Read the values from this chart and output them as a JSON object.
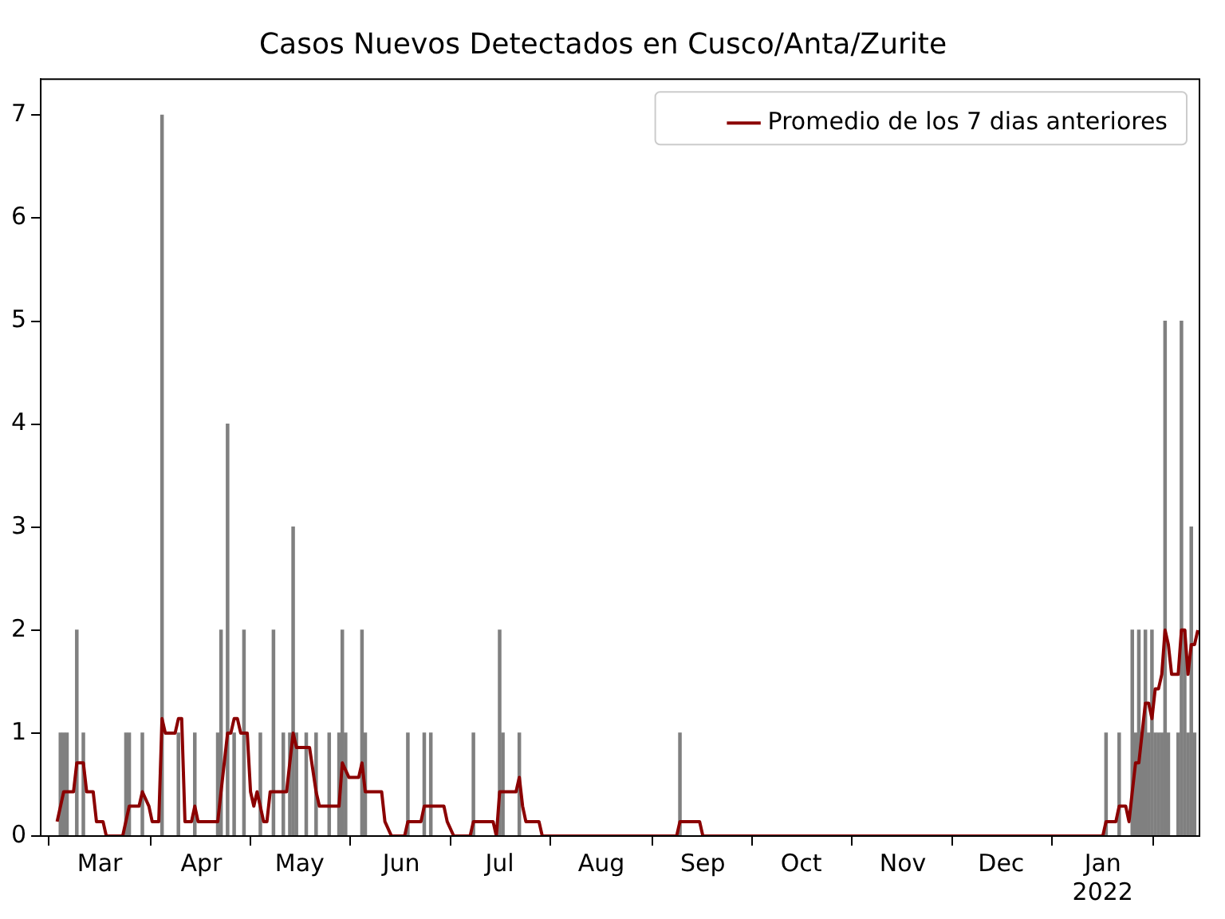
{
  "chart_data": {
    "type": "bar",
    "title": "Casos Nuevos Detectados en Cusco/Anta/Zurite",
    "xlim": [
      "2021-02-11",
      "2022-01-30"
    ],
    "xticks": [
      {
        "value": "2021-03-01",
        "label": "Mar"
      },
      {
        "value": "2021-04-01",
        "label": "Apr"
      },
      {
        "value": "2021-05-01",
        "label": "May"
      },
      {
        "value": "2021-06-01",
        "label": "Jun"
      },
      {
        "value": "2021-07-01",
        "label": "Jul"
      },
      {
        "value": "2021-08-01",
        "label": "Aug"
      },
      {
        "value": "2021-09-01",
        "label": "Sep"
      },
      {
        "value": "2021-10-01",
        "label": "Oct"
      },
      {
        "value": "2021-11-01",
        "label": "Nov"
      },
      {
        "value": "2021-12-01",
        "label": "Dec"
      },
      {
        "value": "2022-01-01",
        "label": "Jan\n2022"
      }
    ],
    "ylim": [
      0,
      7.35
    ],
    "yticks": [
      0,
      1,
      2,
      3,
      4,
      5,
      6,
      7
    ],
    "grid": false,
    "legend": "top right",
    "series": [
      {
        "color": "#808080",
        "x": [
          "2021-02-17",
          "2021-02-18",
          "2021-02-19",
          "2021-02-22",
          "2021-02-24",
          "2021-03-09",
          "2021-03-10",
          "2021-03-14",
          "2021-03-20",
          "2021-03-25",
          "2021-03-30",
          "2021-04-06",
          "2021-04-07",
          "2021-04-09",
          "2021-04-11",
          "2021-04-14",
          "2021-04-19",
          "2021-04-23",
          "2021-04-26",
          "2021-04-28",
          "2021-04-29",
          "2021-04-30",
          "2021-05-03",
          "2021-05-06",
          "2021-05-10",
          "2021-05-13",
          "2021-05-14",
          "2021-05-15",
          "2021-05-20",
          "2021-05-21",
          "2021-06-03",
          "2021-06-08",
          "2021-06-10",
          "2021-06-23",
          "2021-07-01",
          "2021-07-02",
          "2021-07-07",
          "2021-08-25",
          "2022-01-02",
          "2022-01-06",
          "2022-01-10",
          "2022-01-11",
          "2022-01-12",
          "2022-01-13",
          "2022-01-14",
          "2022-01-15",
          "2022-01-16",
          "2022-01-17",
          "2022-01-18",
          "2022-01-19",
          "2022-01-20",
          "2022-01-21",
          "2022-01-24",
          "2022-01-25",
          "2022-01-26",
          "2022-01-27",
          "2022-01-28",
          "2022-01-29"
        ],
        "values": [
          1,
          1,
          1,
          2,
          1,
          1,
          1,
          1,
          7,
          1,
          1,
          1,
          2,
          4,
          1,
          2,
          1,
          2,
          1,
          1,
          3,
          1,
          1,
          1,
          1,
          1,
          2,
          1,
          2,
          1,
          1,
          1,
          1,
          1,
          2,
          1,
          1,
          1,
          1,
          1,
          2,
          1,
          2,
          1,
          2,
          1,
          2,
          1,
          1,
          1,
          5,
          1,
          1,
          5,
          2,
          1,
          3,
          1
        ]
      },
      {
        "type": "line",
        "name": "Promedio de los 7 dias anteriores",
        "color": "#8b0000",
        "marker": "none",
        "line_style": "solid",
        "x": [
          "2021-02-16",
          "2021-02-18",
          "2021-02-21",
          "2021-02-22",
          "2021-02-24",
          "2021-02-25",
          "2021-02-27",
          "2021-02-28",
          "2021-03-02",
          "2021-03-03",
          "2021-03-08",
          "2021-03-10",
          "2021-03-13",
          "2021-03-14",
          "2021-03-16",
          "2021-03-17",
          "2021-03-19",
          "2021-03-20",
          "2021-03-21",
          "2021-03-24",
          "2021-03-25",
          "2021-03-26",
          "2021-03-27",
          "2021-03-29",
          "2021-03-30",
          "2021-03-31",
          "2021-04-06",
          "2021-04-07",
          "2021-04-09",
          "2021-04-10",
          "2021-04-11",
          "2021-04-12",
          "2021-04-13",
          "2021-04-15",
          "2021-04-16",
          "2021-04-17",
          "2021-04-18",
          "2021-04-20",
          "2021-04-21",
          "2021-04-22",
          "2021-04-27",
          "2021-04-29",
          "2021-04-30",
          "2021-05-04",
          "2021-05-06",
          "2021-05-07",
          "2021-05-13",
          "2021-05-14",
          "2021-05-16",
          "2021-05-19",
          "2021-05-20",
          "2021-05-21",
          "2021-05-26",
          "2021-05-27",
          "2021-05-29",
          "2021-06-02",
          "2021-06-03",
          "2021-06-07",
          "2021-06-08",
          "2021-06-14",
          "2021-06-15",
          "2021-06-17",
          "2021-06-22",
          "2021-06-23",
          "2021-06-29",
          "2021-06-30",
          "2021-07-01",
          "2021-07-06",
          "2021-07-07",
          "2021-07-08",
          "2021-07-09",
          "2021-07-13",
          "2021-07-14",
          "2021-08-24",
          "2021-08-25",
          "2021-08-31",
          "2021-09-01",
          "2022-01-01",
          "2022-01-02",
          "2022-01-05",
          "2022-01-06",
          "2022-01-08",
          "2022-01-09",
          "2022-01-10",
          "2022-01-11",
          "2022-01-12",
          "2022-01-13",
          "2022-01-14",
          "2022-01-15",
          "2022-01-16",
          "2022-01-17",
          "2022-01-18",
          "2022-01-19",
          "2022-01-20",
          "2022-01-21",
          "2022-01-22",
          "2022-01-24",
          "2022-01-25",
          "2022-01-26",
          "2022-01-27",
          "2022-01-28",
          "2022-01-29",
          "2022-01-30"
        ],
        "values": [
          0.14,
          0.43,
          0.43,
          0.71,
          0.71,
          0.43,
          0.43,
          0.14,
          0.14,
          0,
          0,
          0.29,
          0.29,
          0.43,
          0.29,
          0.14,
          0.14,
          1.14,
          1.0,
          1.0,
          1.14,
          1.14,
          0.14,
          0.14,
          0.29,
          0.14,
          0.14,
          0.43,
          1.0,
          1.0,
          1.14,
          1.14,
          1.0,
          1.0,
          0.43,
          0.29,
          0.43,
          0.14,
          0.14,
          0.43,
          0.43,
          1.0,
          0.86,
          0.86,
          0.43,
          0.29,
          0.29,
          0.71,
          0.57,
          0.57,
          0.71,
          0.43,
          0.43,
          0.14,
          0,
          0,
          0.14,
          0.14,
          0.29,
          0.29,
          0.14,
          0,
          0,
          0.14,
          0.14,
          0,
          0.43,
          0.43,
          0.57,
          0.29,
          0.14,
          0.14,
          0,
          0,
          0.14,
          0.14,
          0,
          0,
          0.14,
          0.14,
          0.29,
          0.29,
          0.14,
          0.43,
          0.71,
          0.71,
          1.0,
          1.29,
          1.29,
          1.14,
          1.43,
          1.43,
          1.57,
          2.0,
          1.86,
          1.57,
          1.57,
          2.0,
          2.0,
          1.57,
          1.86,
          1.86,
          2.0
        ]
      }
    ]
  }
}
